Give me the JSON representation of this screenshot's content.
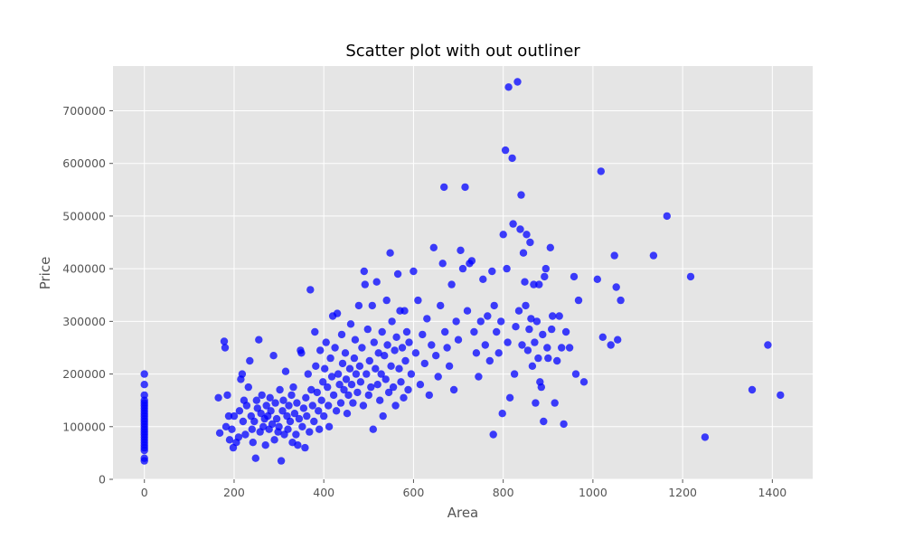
{
  "chart_data": {
    "type": "scatter",
    "title": "Scatter plot with out outliner",
    "xlabel": "Area",
    "ylabel": "Price",
    "xlim": [
      -70,
      1490
    ],
    "ylim": [
      0,
      785000
    ],
    "xticks": [
      0,
      200,
      400,
      600,
      800,
      1000,
      1200,
      1400
    ],
    "yticks": [
      0,
      100000,
      200000,
      300000,
      400000,
      500000,
      600000,
      700000
    ],
    "grid": true,
    "legend": "none",
    "colors": {
      "background": "#e5e5e5",
      "marker": "#0000ff",
      "grid": "#ffffff"
    },
    "points": [
      [
        0,
        35000
      ],
      [
        0,
        40000
      ],
      [
        0,
        55000
      ],
      [
        0,
        60000
      ],
      [
        0,
        65000
      ],
      [
        0,
        70000
      ],
      [
        0,
        75000
      ],
      [
        0,
        80000
      ],
      [
        0,
        85000
      ],
      [
        0,
        90000
      ],
      [
        0,
        95000
      ],
      [
        0,
        100000
      ],
      [
        0,
        105000
      ],
      [
        0,
        110000
      ],
      [
        0,
        115000
      ],
      [
        0,
        120000
      ],
      [
        0,
        125000
      ],
      [
        0,
        130000
      ],
      [
        0,
        135000
      ],
      [
        0,
        140000
      ],
      [
        0,
        145000
      ],
      [
        0,
        150000
      ],
      [
        0,
        160000
      ],
      [
        0,
        180000
      ],
      [
        0,
        200000
      ],
      [
        165,
        155000
      ],
      [
        168,
        88000
      ],
      [
        178,
        262000
      ],
      [
        180,
        250000
      ],
      [
        182,
        100000
      ],
      [
        185,
        160000
      ],
      [
        188,
        120000
      ],
      [
        190,
        75000
      ],
      [
        195,
        95000
      ],
      [
        198,
        60000
      ],
      [
        200,
        120000
      ],
      [
        205,
        70000
      ],
      [
        210,
        80000
      ],
      [
        212,
        130000
      ],
      [
        215,
        190000
      ],
      [
        218,
        200000
      ],
      [
        220,
        110000
      ],
      [
        222,
        150000
      ],
      [
        225,
        85000
      ],
      [
        228,
        140000
      ],
      [
        232,
        175000
      ],
      [
        235,
        225000
      ],
      [
        238,
        120000
      ],
      [
        240,
        95000
      ],
      [
        242,
        70000
      ],
      [
        245,
        110000
      ],
      [
        248,
        40000
      ],
      [
        250,
        150000
      ],
      [
        252,
        135000
      ],
      [
        255,
        265000
      ],
      [
        258,
        90000
      ],
      [
        260,
        125000
      ],
      [
        262,
        160000
      ],
      [
        265,
        100000
      ],
      [
        268,
        115000
      ],
      [
        270,
        65000
      ],
      [
        272,
        140000
      ],
      [
        275,
        120000
      ],
      [
        278,
        95000
      ],
      [
        280,
        155000
      ],
      [
        282,
        130000
      ],
      [
        285,
        105000
      ],
      [
        288,
        235000
      ],
      [
        290,
        75000
      ],
      [
        292,
        145000
      ],
      [
        295,
        115000
      ],
      [
        298,
        90000
      ],
      [
        300,
        100000
      ],
      [
        302,
        170000
      ],
      [
        305,
        35000
      ],
      [
        308,
        130000
      ],
      [
        310,
        150000
      ],
      [
        312,
        85000
      ],
      [
        315,
        205000
      ],
      [
        318,
        120000
      ],
      [
        320,
        95000
      ],
      [
        322,
        140000
      ],
      [
        325,
        110000
      ],
      [
        328,
        160000
      ],
      [
        330,
        70000
      ],
      [
        332,
        175000
      ],
      [
        335,
        125000
      ],
      [
        338,
        85000
      ],
      [
        340,
        145000
      ],
      [
        342,
        65000
      ],
      [
        345,
        115000
      ],
      [
        348,
        245000
      ],
      [
        350,
        240000
      ],
      [
        352,
        100000
      ],
      [
        355,
        135000
      ],
      [
        358,
        60000
      ],
      [
        360,
        155000
      ],
      [
        362,
        120000
      ],
      [
        365,
        200000
      ],
      [
        368,
        90000
      ],
      [
        370,
        360000
      ],
      [
        372,
        170000
      ],
      [
        375,
        140000
      ],
      [
        378,
        110000
      ],
      [
        380,
        280000
      ],
      [
        382,
        215000
      ],
      [
        385,
        165000
      ],
      [
        388,
        130000
      ],
      [
        390,
        95000
      ],
      [
        392,
        245000
      ],
      [
        395,
        150000
      ],
      [
        398,
        185000
      ],
      [
        400,
        120000
      ],
      [
        402,
        210000
      ],
      [
        405,
        260000
      ],
      [
        408,
        175000
      ],
      [
        410,
        140000
      ],
      [
        412,
        100000
      ],
      [
        415,
        230000
      ],
      [
        418,
        195000
      ],
      [
        420,
        310000
      ],
      [
        422,
        160000
      ],
      [
        425,
        250000
      ],
      [
        428,
        130000
      ],
      [
        430,
        315000
      ],
      [
        432,
        200000
      ],
      [
        435,
        180000
      ],
      [
        438,
        145000
      ],
      [
        440,
        275000
      ],
      [
        442,
        220000
      ],
      [
        445,
        170000
      ],
      [
        448,
        240000
      ],
      [
        450,
        190000
      ],
      [
        452,
        125000
      ],
      [
        455,
        160000
      ],
      [
        458,
        210000
      ],
      [
        460,
        295000
      ],
      [
        462,
        180000
      ],
      [
        465,
        145000
      ],
      [
        468,
        230000
      ],
      [
        470,
        265000
      ],
      [
        472,
        200000
      ],
      [
        475,
        165000
      ],
      [
        478,
        330000
      ],
      [
        480,
        215000
      ],
      [
        482,
        185000
      ],
      [
        485,
        250000
      ],
      [
        488,
        140000
      ],
      [
        490,
        395000
      ],
      [
        492,
        370000
      ],
      [
        495,
        200000
      ],
      [
        498,
        285000
      ],
      [
        500,
        160000
      ],
      [
        502,
        225000
      ],
      [
        505,
        175000
      ],
      [
        508,
        330000
      ],
      [
        510,
        95000
      ],
      [
        512,
        260000
      ],
      [
        515,
        210000
      ],
      [
        518,
        375000
      ],
      [
        520,
        180000
      ],
      [
        522,
        240000
      ],
      [
        525,
        150000
      ],
      [
        528,
        200000
      ],
      [
        530,
        280000
      ],
      [
        532,
        120000
      ],
      [
        535,
        235000
      ],
      [
        538,
        190000
      ],
      [
        540,
        340000
      ],
      [
        542,
        255000
      ],
      [
        545,
        165000
      ],
      [
        548,
        430000
      ],
      [
        550,
        215000
      ],
      [
        552,
        300000
      ],
      [
        555,
        175000
      ],
      [
        558,
        245000
      ],
      [
        560,
        140000
      ],
      [
        562,
        270000
      ],
      [
        565,
        390000
      ],
      [
        568,
        210000
      ],
      [
        570,
        320000
      ],
      [
        572,
        185000
      ],
      [
        575,
        250000
      ],
      [
        578,
        155000
      ],
      [
        580,
        320000
      ],
      [
        582,
        225000
      ],
      [
        585,
        280000
      ],
      [
        588,
        170000
      ],
      [
        590,
        260000
      ],
      [
        595,
        200000
      ],
      [
        600,
        395000
      ],
      [
        605,
        240000
      ],
      [
        610,
        340000
      ],
      [
        615,
        180000
      ],
      [
        620,
        275000
      ],
      [
        625,
        220000
      ],
      [
        630,
        305000
      ],
      [
        635,
        160000
      ],
      [
        640,
        255000
      ],
      [
        645,
        440000
      ],
      [
        650,
        235000
      ],
      [
        655,
        195000
      ],
      [
        660,
        330000
      ],
      [
        665,
        410000
      ],
      [
        668,
        555000
      ],
      [
        670,
        280000
      ],
      [
        675,
        250000
      ],
      [
        680,
        215000
      ],
      [
        685,
        370000
      ],
      [
        690,
        170000
      ],
      [
        695,
        300000
      ],
      [
        700,
        265000
      ],
      [
        705,
        435000
      ],
      [
        710,
        400000
      ],
      [
        715,
        555000
      ],
      [
        720,
        320000
      ],
      [
        725,
        410000
      ],
      [
        730,
        415000
      ],
      [
        735,
        280000
      ],
      [
        740,
        240000
      ],
      [
        745,
        195000
      ],
      [
        750,
        300000
      ],
      [
        755,
        380000
      ],
      [
        760,
        255000
      ],
      [
        765,
        310000
      ],
      [
        770,
        225000
      ],
      [
        775,
        395000
      ],
      [
        778,
        85000
      ],
      [
        780,
        330000
      ],
      [
        785,
        280000
      ],
      [
        790,
        240000
      ],
      [
        795,
        300000
      ],
      [
        798,
        125000
      ],
      [
        800,
        465000
      ],
      [
        805,
        625000
      ],
      [
        808,
        400000
      ],
      [
        810,
        260000
      ],
      [
        812,
        745000
      ],
      [
        815,
        155000
      ],
      [
        820,
        610000
      ],
      [
        822,
        485000
      ],
      [
        825,
        200000
      ],
      [
        828,
        290000
      ],
      [
        832,
        755000
      ],
      [
        835,
        320000
      ],
      [
        838,
        475000
      ],
      [
        840,
        540000
      ],
      [
        842,
        255000
      ],
      [
        845,
        430000
      ],
      [
        848,
        375000
      ],
      [
        850,
        330000
      ],
      [
        852,
        465000
      ],
      [
        855,
        245000
      ],
      [
        858,
        285000
      ],
      [
        860,
        450000
      ],
      [
        862,
        305000
      ],
      [
        865,
        215000
      ],
      [
        868,
        370000
      ],
      [
        870,
        260000
      ],
      [
        872,
        145000
      ],
      [
        875,
        300000
      ],
      [
        878,
        230000
      ],
      [
        880,
        370000
      ],
      [
        882,
        185000
      ],
      [
        885,
        175000
      ],
      [
        888,
        275000
      ],
      [
        890,
        110000
      ],
      [
        892,
        385000
      ],
      [
        895,
        400000
      ],
      [
        898,
        250000
      ],
      [
        900,
        230000
      ],
      [
        905,
        440000
      ],
      [
        908,
        285000
      ],
      [
        910,
        310000
      ],
      [
        915,
        145000
      ],
      [
        920,
        225000
      ],
      [
        925,
        310000
      ],
      [
        930,
        250000
      ],
      [
        935,
        105000
      ],
      [
        940,
        280000
      ],
      [
        948,
        250000
      ],
      [
        958,
        385000
      ],
      [
        962,
        200000
      ],
      [
        968,
        340000
      ],
      [
        980,
        185000
      ],
      [
        1010,
        380000
      ],
      [
        1018,
        585000
      ],
      [
        1022,
        270000
      ],
      [
        1040,
        255000
      ],
      [
        1048,
        425000
      ],
      [
        1052,
        365000
      ],
      [
        1055,
        265000
      ],
      [
        1062,
        340000
      ],
      [
        1135,
        425000
      ],
      [
        1165,
        500000
      ],
      [
        1218,
        385000
      ],
      [
        1250,
        80000
      ],
      [
        1355,
        170000
      ],
      [
        1390,
        255000
      ],
      [
        1418,
        160000
      ]
    ]
  }
}
